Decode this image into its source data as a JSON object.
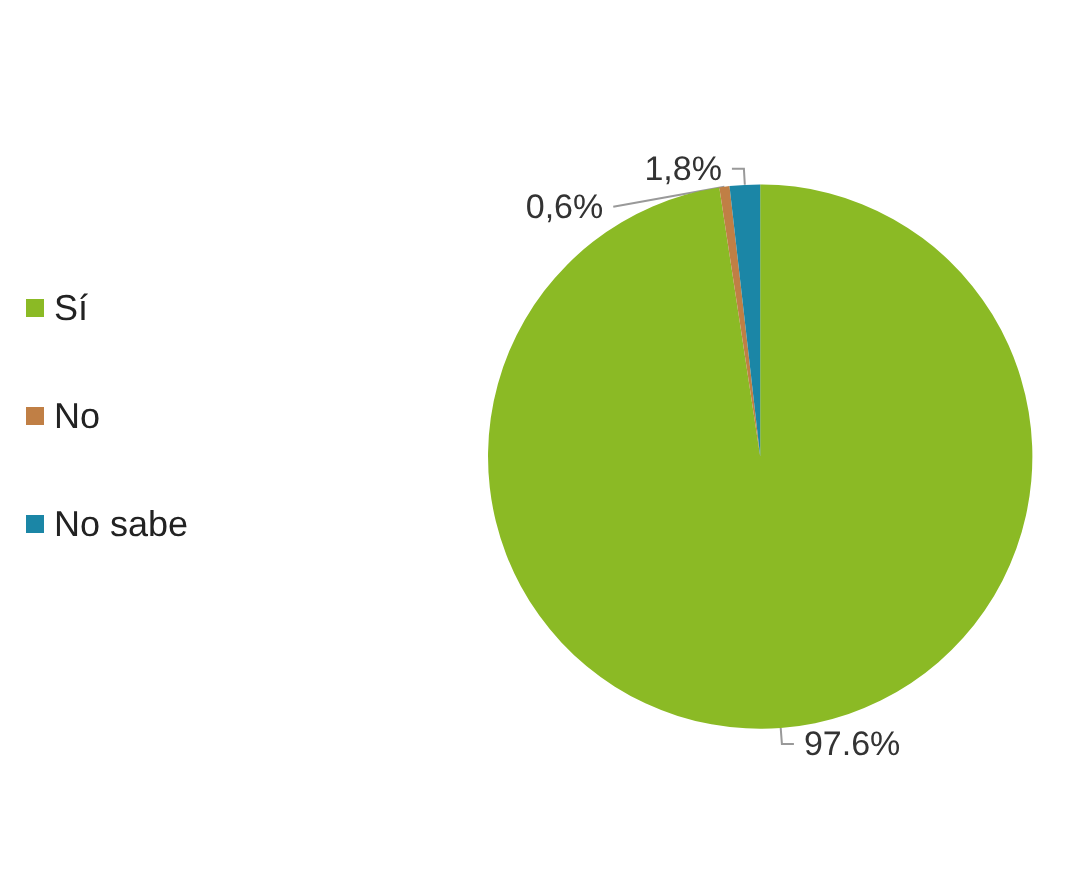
{
  "chart_data": {
    "type": "pie",
    "categories": [
      "Sí",
      "No",
      "No sabe"
    ],
    "values": [
      97.6,
      0.6,
      1.8
    ],
    "colors": [
      "#8bba25",
      "#c07f45",
      "#1b86a6"
    ],
    "value_labels": [
      "97.6%",
      "0,6%",
      "1,8%"
    ],
    "legend": "left"
  }
}
